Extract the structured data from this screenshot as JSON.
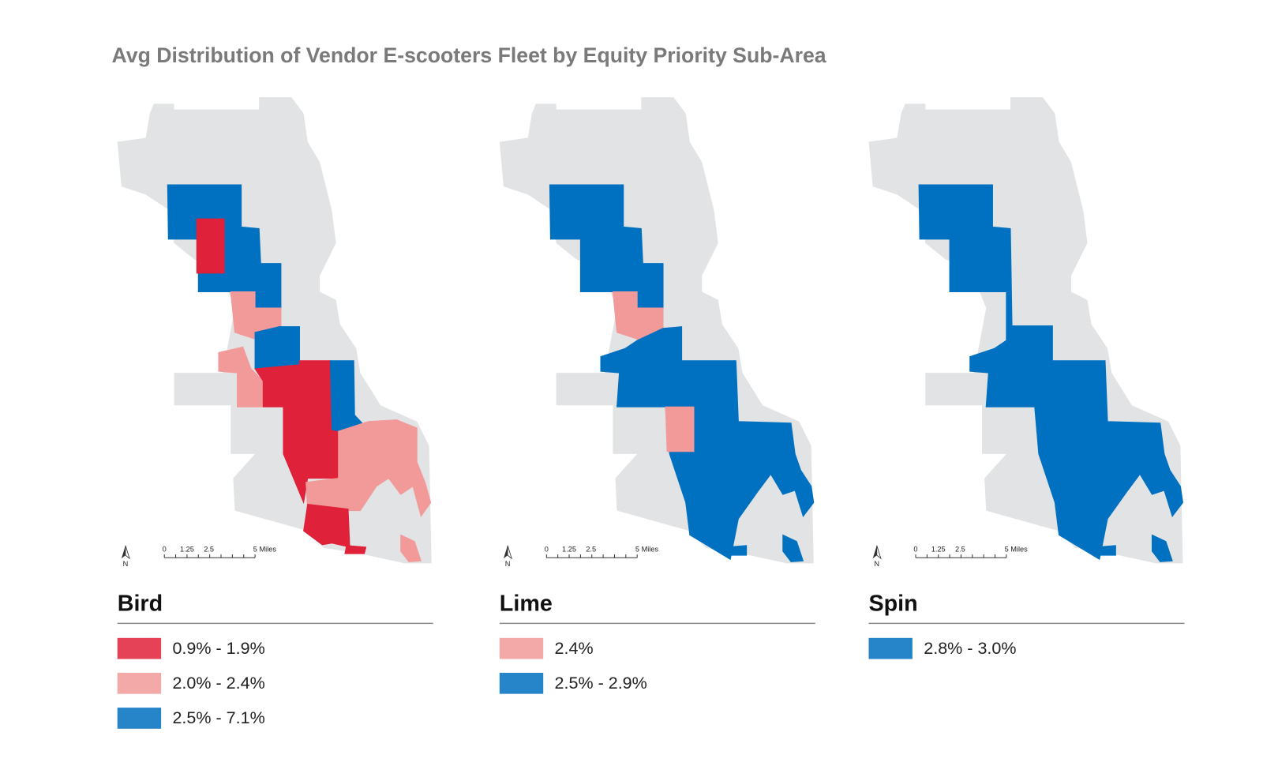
{
  "title": "Avg Distribution of Vendor E-scooters Fleet by Equity Priority Sub-Area",
  "maps": [
    {
      "name": "Bird",
      "north": "N",
      "scale_labels": [
        "0",
        "1.25",
        "2.5",
        "5 Miles"
      ],
      "legend": [
        {
          "label": "0.9% - 1.9%",
          "color": "#e0213a"
        },
        {
          "label": "2.0% - 2.4%",
          "color": "#f29a9a"
        },
        {
          "label": "2.5% - 7.1%",
          "color": "#0070c0"
        }
      ]
    },
    {
      "name": "Lime",
      "north": "N",
      "scale_labels": [
        "0",
        "1.25",
        "2.5",
        "5 Miles"
      ],
      "legend": [
        {
          "label": "2.4%",
          "color": "#f29a9a"
        },
        {
          "label": "2.5% - 2.9%",
          "color": "#0070c0"
        }
      ]
    },
    {
      "name": "Spin",
      "north": "N",
      "scale_labels": [
        "0",
        "1.25",
        "2.5",
        "5 Miles"
      ],
      "legend": [
        {
          "label": "2.8% - 3.0%",
          "color": "#0070c0"
        }
      ]
    }
  ]
}
